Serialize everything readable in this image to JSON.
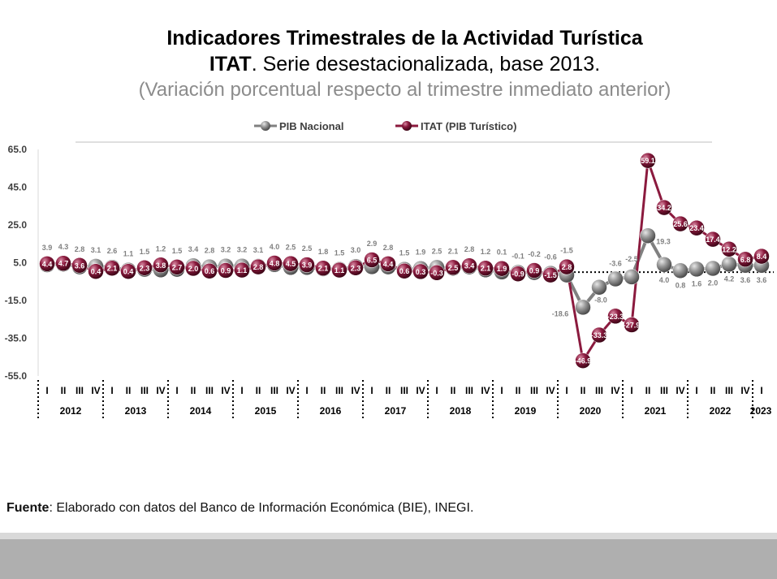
{
  "title_line1": "Indicadores Trimestrales de la Actividad Turística",
  "title_line2_bold": "ITAT",
  "title_line2_rest": ". Serie desestacionalizada, base 2013.",
  "title_line3": "(Variación porcentual respecto al trimestre inmediato anterior)",
  "source_bold": "Fuente",
  "source_rest": ": Elaborado con datos del Banco de Información Económica (BIE), INEGI.",
  "colors": {
    "pib": "#808080",
    "itat": "#8b1a3e",
    "label_gray": "#808080"
  },
  "chart_data": {
    "type": "line",
    "title": "",
    "xlabel": "",
    "ylabel": "",
    "ylim": [
      -55,
      65
    ],
    "yticks": [
      "65.0",
      "45.0",
      "25.0",
      "5.0",
      "-15.0",
      "-35.0",
      "-55.0"
    ],
    "legend_position": "top",
    "quarter_labels": [
      "I",
      "II",
      "III",
      "IV",
      "I",
      "II",
      "III",
      "IV",
      "I",
      "II",
      "III",
      "IV",
      "I",
      "II",
      "III",
      "IV",
      "I",
      "II",
      "III",
      "IV",
      "I",
      "II",
      "III",
      "IV",
      "I",
      "II",
      "III",
      "IV",
      "I",
      "II",
      "III",
      "IV",
      "I",
      "II",
      "III",
      "IV",
      "I",
      "II",
      "III",
      "IV",
      "I",
      "II",
      "III",
      "IV",
      "I"
    ],
    "years": [
      "2012",
      "2013",
      "2014",
      "2015",
      "2016",
      "2017",
      "2018",
      "2019",
      "2020",
      "2021",
      "2022",
      "2023"
    ],
    "series": [
      {
        "name": "PIB Nacional",
        "values": [
          3.9,
          4.3,
          2.8,
          3.1,
          2.6,
          1.1,
          1.5,
          1.2,
          1.5,
          3.4,
          2.8,
          3.2,
          3.2,
          3.1,
          4.0,
          2.5,
          2.5,
          1.8,
          1.5,
          3.0,
          2.9,
          2.8,
          1.5,
          1.9,
          2.5,
          2.1,
          2.8,
          1.2,
          0.1,
          -0.1,
          -0.2,
          -0.6,
          -1.5,
          -18.6,
          -8.0,
          -3.6,
          -2.5,
          19.3,
          4.0,
          0.8,
          1.6,
          2.0,
          4.2,
          3.6,
          3.6
        ],
        "labels": [
          "3.9",
          "4.3",
          "2.8",
          "3.1",
          "2.6",
          "1.1",
          "1.5",
          "1.2",
          "1.5",
          "3.4",
          "2.8",
          "3.2",
          "3.2",
          "3.1",
          "4.0",
          "2.5",
          "2.5",
          "1.8",
          "1.5",
          "3.0",
          "2.9",
          "2.8",
          "1.5",
          "1.9",
          "2.5",
          "2.1",
          "2.8",
          "1.2",
          "0.1",
          "-0.1",
          "-0.2",
          "-0.6",
          "-1.5",
          "-18.6",
          "-8.0",
          "-3.6",
          "-2.5",
          "19.3",
          "4.0",
          "0.8",
          "1.6",
          "2.0",
          "4.2",
          "3.6",
          "3.6"
        ]
      },
      {
        "name": "ITAT (PIB Turístico)",
        "values": [
          4.4,
          4.7,
          3.6,
          0.4,
          2.1,
          0.4,
          2.3,
          3.8,
          2.7,
          2.0,
          0.6,
          0.9,
          1.1,
          2.8,
          4.8,
          4.5,
          3.9,
          2.1,
          1.1,
          2.3,
          6.5,
          4.4,
          0.6,
          0.3,
          -0.3,
          2.5,
          3.4,
          2.1,
          1.9,
          -0.9,
          0.9,
          -1.5,
          2.8,
          -46.9,
          -33.3,
          -23.3,
          -27.9,
          59.1,
          34.2,
          25.6,
          23.4,
          17.4,
          12.2,
          6.8,
          8.4
        ],
        "labels": [
          "4.4",
          "4.7",
          "3.6",
          "0.4",
          "2.1",
          "0.4",
          "2.3",
          "3.8",
          "2.7",
          "2.0",
          "0.6",
          "0.9",
          "1.1",
          "2.8",
          "4.8",
          "4.5",
          "3.9",
          "2.1",
          "1.1",
          "2.3",
          "6.5",
          "4.4",
          "0.6",
          "0.3",
          "-0.3",
          "2.5",
          "3.4",
          "2.1",
          "1.9",
          "-0.9",
          "0.9",
          "-1.5",
          "2.8",
          "-46.9",
          "-33.3",
          "-23.3",
          "-27.9",
          "59.1",
          "34.2",
          "25.6",
          "23.4",
          "17.4",
          "12.2",
          "6.8",
          "8.4"
        ]
      }
    ]
  }
}
